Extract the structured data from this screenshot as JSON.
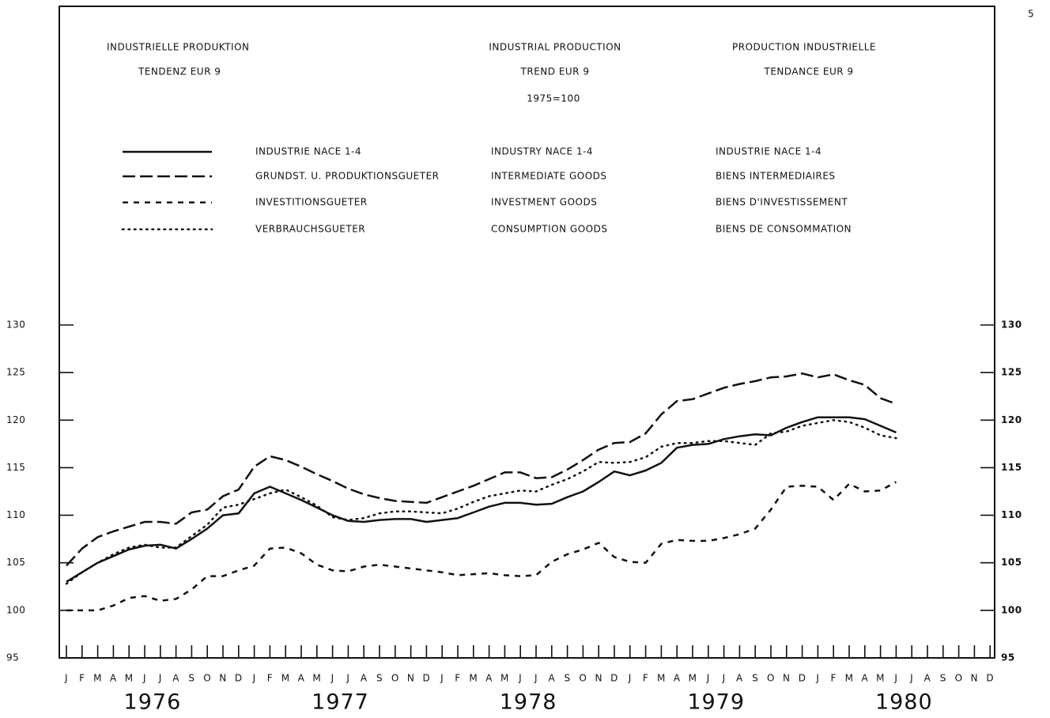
{
  "page": "5",
  "chart_data": {
    "type": "line",
    "title": {
      "de": [
        "INDUSTRIELLE PRODUKTION",
        "TENDENZ  EUR 9"
      ],
      "en": [
        "INDUSTRIAL PRODUCTION",
        "TREND EUR 9"
      ],
      "fr": [
        "PRODUCTION INDUSTRIELLE",
        "TENDANCE EUR 9"
      ]
    },
    "subtitle": "1975=100",
    "categories": [
      "J",
      "F",
      "M",
      "A",
      "M",
      "J",
      "J",
      "A",
      "S",
      "O",
      "N",
      "D",
      "J",
      "F",
      "M",
      "A",
      "M",
      "J",
      "J",
      "A",
      "S",
      "O",
      "N",
      "D",
      "J",
      "F",
      "M",
      "A",
      "M",
      "J",
      "J",
      "A",
      "S",
      "O",
      "N",
      "D",
      "J",
      "F",
      "M",
      "A",
      "M",
      "J",
      "J",
      "A",
      "S",
      "O",
      "N",
      "D",
      "J",
      "F",
      "M",
      "A",
      "M",
      "J",
      "J",
      "A",
      "S",
      "O",
      "N",
      "D"
    ],
    "years": [
      "1976",
      "1977",
      "1978",
      "1979",
      "1980"
    ],
    "ylim": [
      95,
      130
    ],
    "yticks": [
      95,
      100,
      105,
      110,
      115,
      120,
      125,
      130
    ],
    "series": [
      {
        "name": "INDUSTRIE NACE 1-4",
        "name_en": "INDUSTRY NACE 1-4",
        "name_fr": "INDUSTRIE NACE 1-4",
        "color": "#111111",
        "style": "solid",
        "values": [
          103.0,
          104.0,
          105.0,
          105.7,
          106.4,
          106.8,
          106.9,
          106.5,
          107.5,
          108.6,
          110.0,
          110.2,
          112.3,
          113.0,
          112.3,
          111.6,
          110.8,
          110.0,
          109.4,
          109.3,
          109.5,
          109.6,
          109.6,
          109.3,
          109.5,
          109.7,
          110.3,
          110.9,
          111.3,
          111.3,
          111.1,
          111.2,
          111.9,
          112.5,
          113.5,
          114.6,
          114.2,
          114.7,
          115.5,
          117.1,
          117.4,
          117.5,
          118.0,
          118.3,
          118.5,
          118.4,
          119.2,
          119.8,
          120.3,
          120.3,
          120.3,
          120.1,
          119.4,
          118.7,
          null,
          null,
          null,
          null,
          null,
          null
        ]
      },
      {
        "name": "GRUNDST. U. PRODUKTIONSGUETER",
        "name_en": "INTERMEDIATE GOODS",
        "name_fr": "BIENS INTERMEDIAIRES",
        "color": "#111111",
        "style": "long-dash",
        "values": [
          104.7,
          106.5,
          107.7,
          108.3,
          108.8,
          109.3,
          109.3,
          109.1,
          110.3,
          110.6,
          112.0,
          112.7,
          115.1,
          116.2,
          115.8,
          115.1,
          114.3,
          113.6,
          112.8,
          112.2,
          111.8,
          111.5,
          111.4,
          111.3,
          111.9,
          112.5,
          113.1,
          113.8,
          114.5,
          114.5,
          113.9,
          114.0,
          114.8,
          115.8,
          116.9,
          117.6,
          117.7,
          118.6,
          120.6,
          122.0,
          122.2,
          122.8,
          123.4,
          123.8,
          124.1,
          124.5,
          124.6,
          124.9,
          124.5,
          124.8,
          124.2,
          123.7,
          122.3,
          121.7,
          null,
          null,
          null,
          null,
          null,
          null
        ]
      },
      {
        "name": "INVESTITIONSGUETER",
        "name_en": "INVESTMENT GOODS",
        "name_fr": "BIENS D'INVESTISSEMENT",
        "color": "#111111",
        "style": "dash",
        "values": [
          100.0,
          100.0,
          100.0,
          100.5,
          101.3,
          101.5,
          101.0,
          101.2,
          102.2,
          103.6,
          103.6,
          104.2,
          104.7,
          106.5,
          106.6,
          106.0,
          104.8,
          104.2,
          104.1,
          104.6,
          104.8,
          104.6,
          104.4,
          104.2,
          104.0,
          103.7,
          103.8,
          103.9,
          103.7,
          103.6,
          103.7,
          105.1,
          105.9,
          106.4,
          107.1,
          105.6,
          105.1,
          105.0,
          107.0,
          107.4,
          107.3,
          107.3,
          107.6,
          108.0,
          108.6,
          110.6,
          113.0,
          113.1,
          113.0,
          111.6,
          113.3,
          112.5,
          112.6,
          113.5,
          null,
          null,
          null,
          null,
          null,
          null
        ]
      },
      {
        "name": "VERBRAUCHSGUETER",
        "name_en": "CONSUMPTION GOODS",
        "name_fr": "BIENS DE CONSOMMATION",
        "color": "#111111",
        "style": "dot",
        "values": [
          102.8,
          104.0,
          105.0,
          105.9,
          106.6,
          106.9,
          106.6,
          106.6,
          107.8,
          109.0,
          110.8,
          111.1,
          111.7,
          112.3,
          112.7,
          111.9,
          111.0,
          109.8,
          109.5,
          109.7,
          110.2,
          110.4,
          110.4,
          110.3,
          110.2,
          110.7,
          111.4,
          112.0,
          112.3,
          112.6,
          112.5,
          113.2,
          113.8,
          114.6,
          115.6,
          115.5,
          115.6,
          116.1,
          117.2,
          117.6,
          117.6,
          117.8,
          117.8,
          117.6,
          117.4,
          118.6,
          118.8,
          119.4,
          119.7,
          120.0,
          119.8,
          119.2,
          118.4,
          118.1,
          null,
          null,
          null,
          null,
          null,
          null
        ]
      }
    ]
  }
}
